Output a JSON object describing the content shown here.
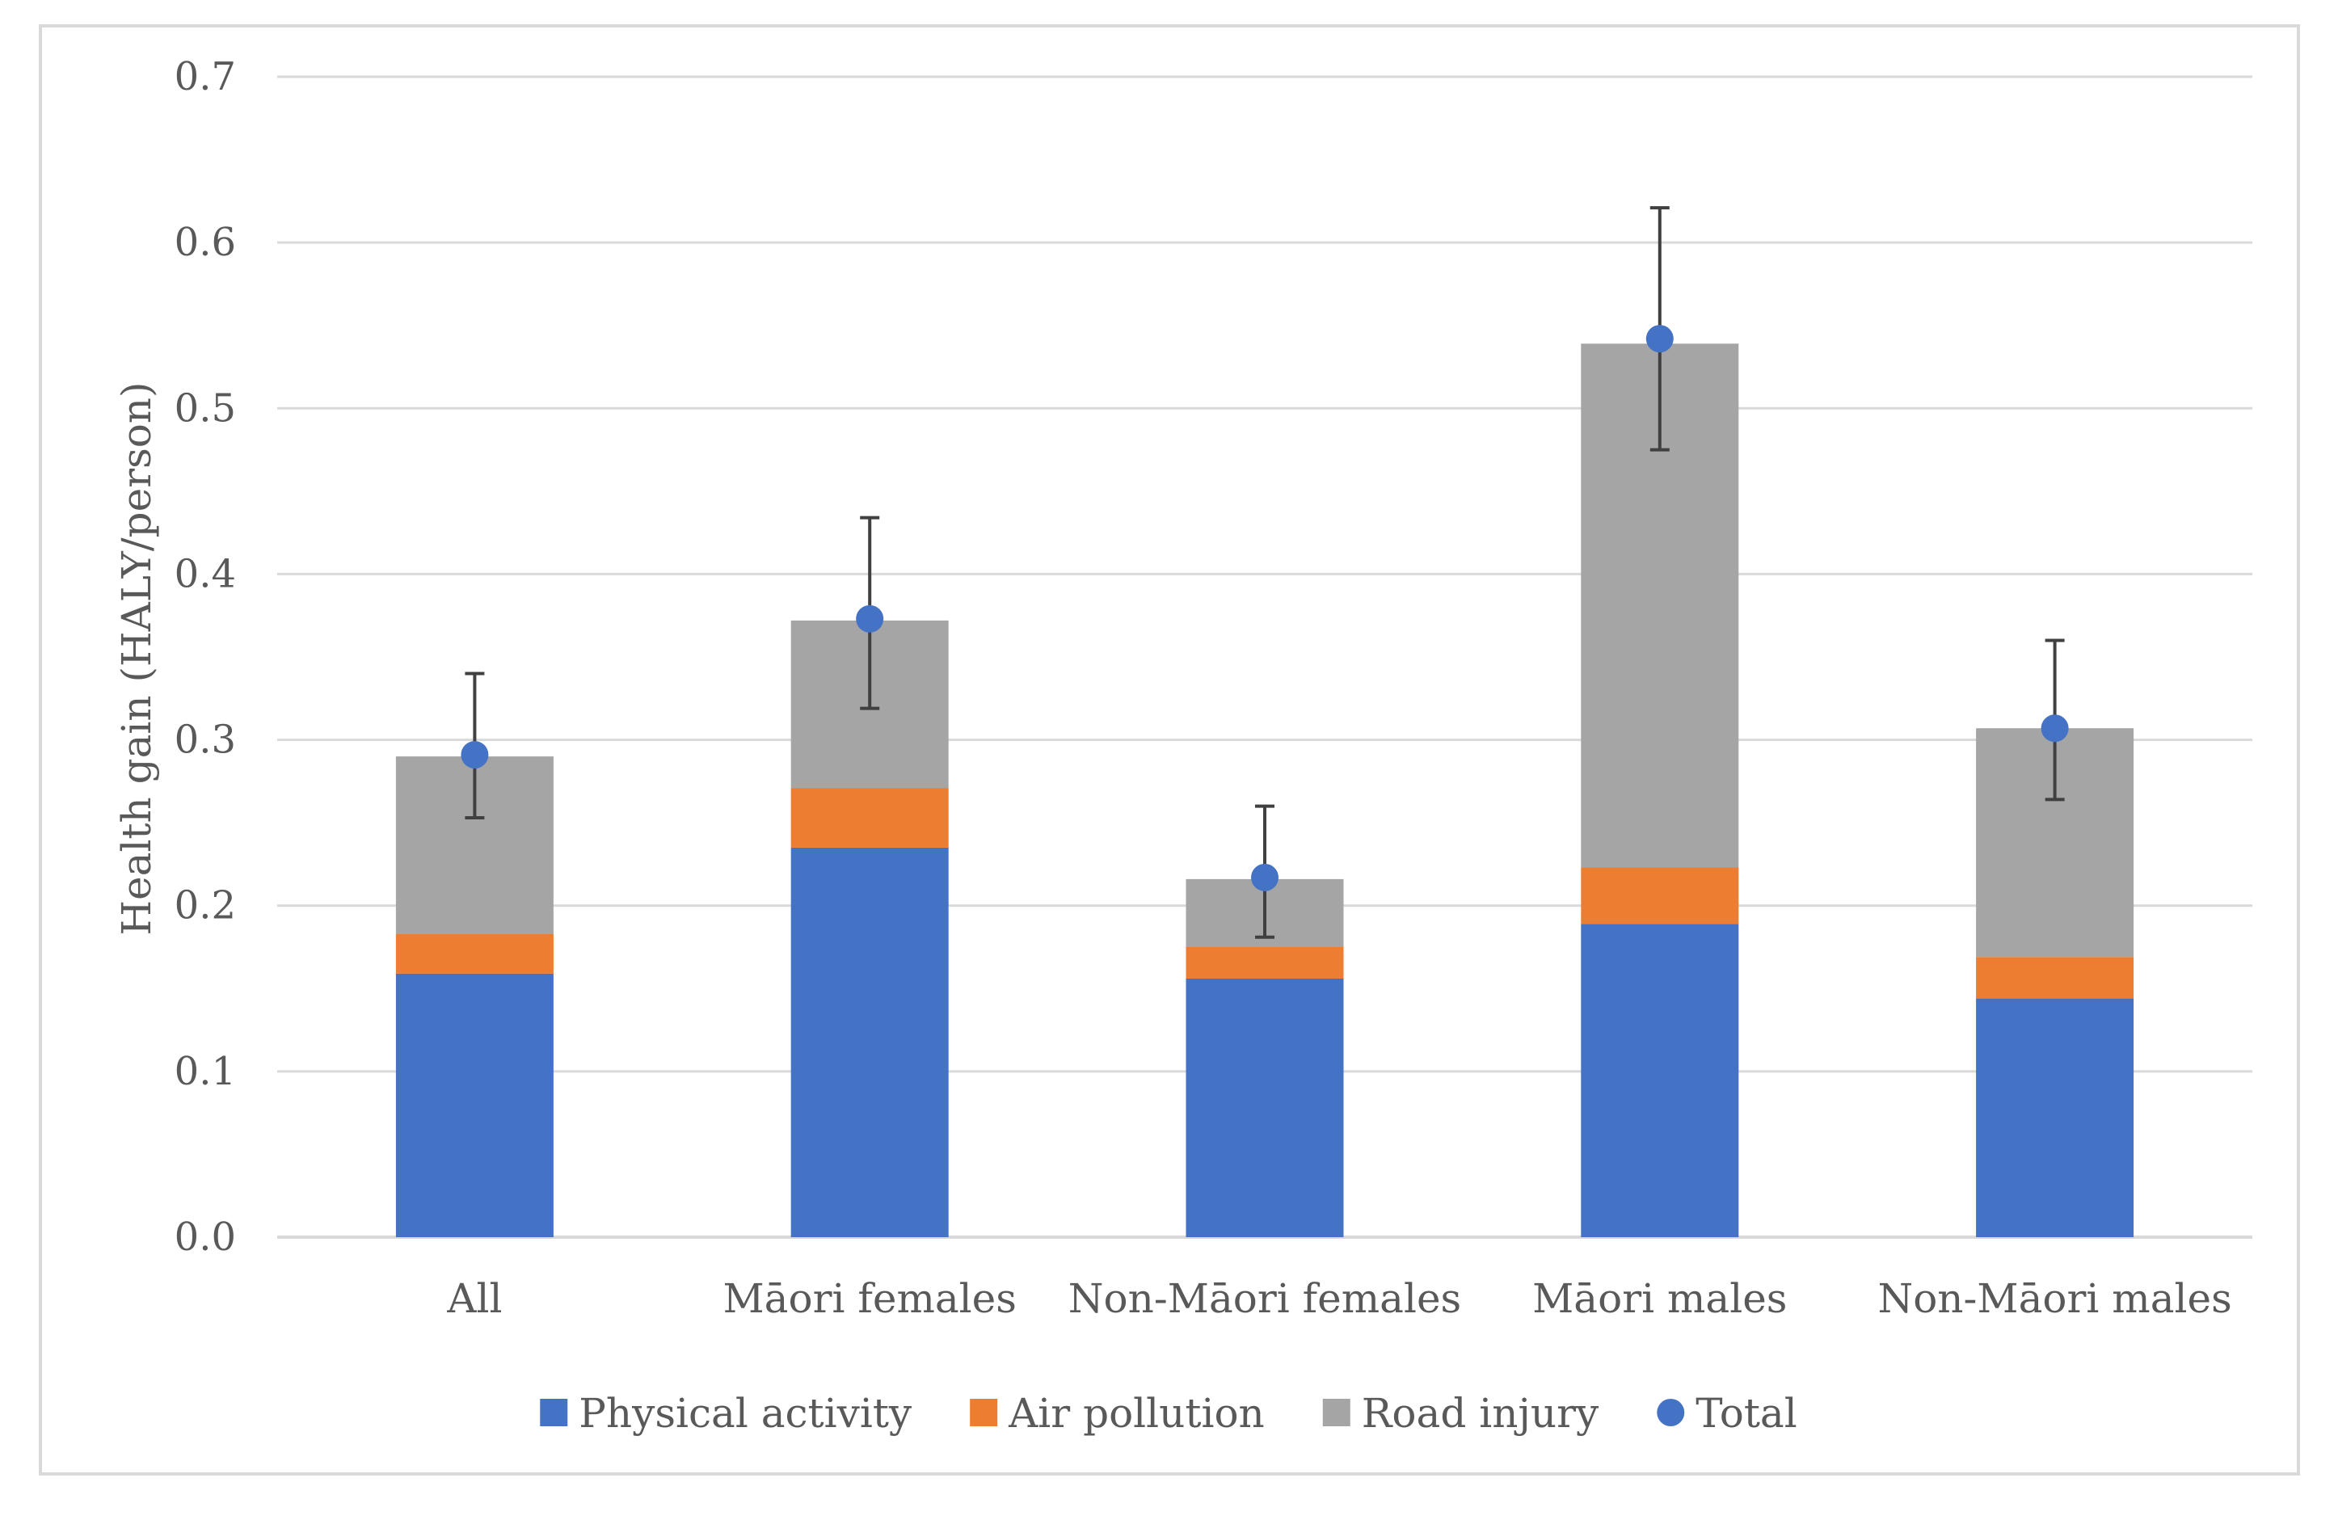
{
  "chart_data": {
    "type": "bar",
    "stacked": true,
    "title": "",
    "xlabel": "",
    "ylabel": "Health gain (HALY/person)",
    "ylim": [
      0,
      0.7
    ],
    "yticks": [
      "0.0",
      "0.1",
      "0.2",
      "0.3",
      "0.4",
      "0.5",
      "0.6",
      "0.7"
    ],
    "categories": [
      "All",
      "Māori females",
      "Non-Māori females",
      "Māori males",
      "Non-Māori males"
    ],
    "series": [
      {
        "name": "Physical activity",
        "color": "#4472c4",
        "values": [
          0.159,
          0.235,
          0.156,
          0.189,
          0.144
        ]
      },
      {
        "name": "Air pollution",
        "color": "#ed7d31",
        "values": [
          0.024,
          0.036,
          0.019,
          0.034,
          0.025
        ]
      },
      {
        "name": "Road injury",
        "color": "#a5a5a5",
        "values": [
          0.107,
          0.101,
          0.041,
          0.316,
          0.138
        ]
      }
    ],
    "total": {
      "name": "Total",
      "color": "#4472c4",
      "values": [
        0.291,
        0.373,
        0.217,
        0.542,
        0.307
      ],
      "error_low": [
        0.253,
        0.319,
        0.181,
        0.475,
        0.264
      ],
      "error_high": [
        0.34,
        0.434,
        0.26,
        0.621,
        0.36
      ]
    },
    "legend_position": "bottom"
  }
}
